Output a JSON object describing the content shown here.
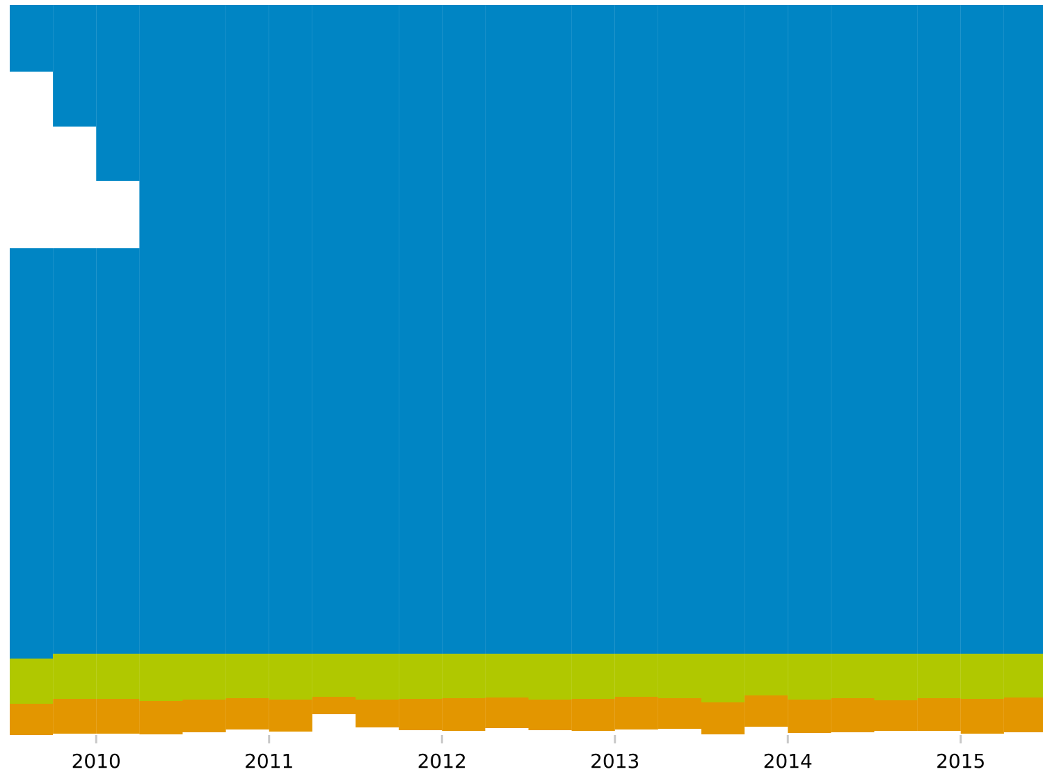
{
  "chart_data": {
    "type": "stacked_column",
    "x": [
      2009.5,
      2009.75,
      2010,
      2010.25,
      2010.5,
      2010.75,
      2011,
      2011.25,
      2011.5,
      2011.75,
      2012,
      2012.25,
      2012.5,
      2012.75,
      2013,
      2013.25,
      2013.5,
      2013.75,
      2014,
      2014.25,
      2014.5,
      2014.75,
      2015,
      2015.25
    ],
    "xlim": [
      2009.5,
      2015.5
    ],
    "xticks": [
      2010,
      2011,
      2012,
      2013,
      2014,
      2015
    ],
    "ylim": [
      0,
      1050
    ],
    "y_reversed": true,
    "series": [
      {
        "color": "#0085c4",
        "values": [
          96,
          175,
          253,
          350,
          350,
          350,
          350,
          350,
          350,
          350,
          350,
          350,
          350,
          350,
          350,
          350,
          350,
          350,
          350,
          350,
          350,
          350,
          350,
          350
        ]
      },
      {
        "color": "#ffffff",
        "values": [
          254,
          175,
          97,
          0,
          0,
          0,
          0,
          0,
          0,
          0,
          0,
          0,
          0,
          0,
          0,
          0,
          0,
          0,
          0,
          0,
          0,
          0,
          0,
          0
        ]
      },
      {
        "color": "#0085c4",
        "values": [
          590,
          583,
          583,
          583,
          583,
          583,
          583,
          583,
          583,
          583,
          583,
          583,
          583,
          583,
          583,
          583,
          583,
          583,
          583,
          583,
          583,
          583,
          583,
          583
        ]
      },
      {
        "color": "#b0c800",
        "values": [
          65,
          65,
          65,
          68,
          66,
          64,
          66,
          62,
          66,
          65,
          64,
          63,
          66,
          65,
          62,
          64,
          70,
          60,
          66,
          64,
          67,
          64,
          65,
          63
        ]
      },
      {
        "color": "#e39600",
        "values": [
          45,
          50,
          50,
          48,
          47,
          45,
          46,
          25,
          40,
          45,
          47,
          44,
          44,
          46,
          47,
          44,
          46,
          45,
          48,
          49,
          44,
          47,
          50,
          50
        ]
      }
    ]
  }
}
